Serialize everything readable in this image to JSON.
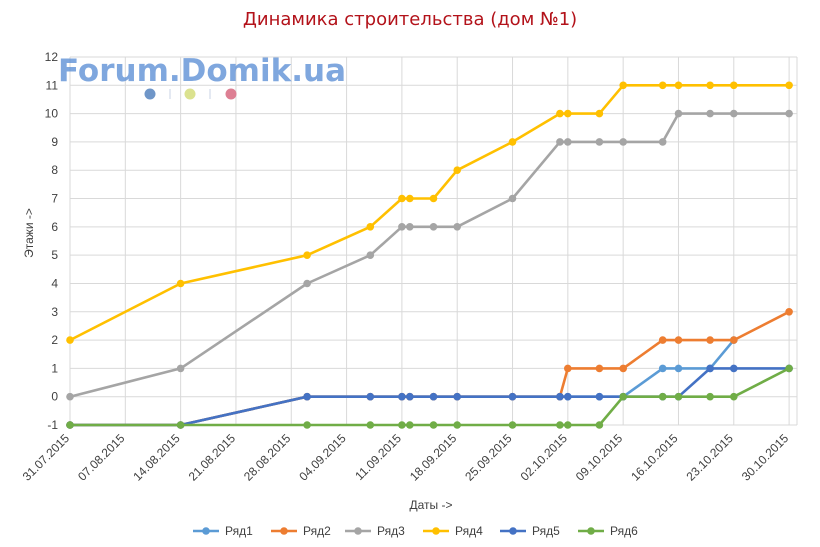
{
  "watermark": {
    "text": "Forum.Domik.ua",
    "dots": [
      "#6f96c8",
      "#dbe28f",
      "#dd7f93"
    ]
  },
  "chart_data": {
    "type": "line",
    "title": "Динамика строительства (дом №1)",
    "xlabel": "Даты ->",
    "ylabel": "Этажи ->",
    "x_tick_labels": [
      "31.07.2015",
      "07.08.2015",
      "14.08.2015",
      "21.08.2015",
      "28.08.2015",
      "04.09.2015",
      "11.09.2015",
      "18.09.2015",
      "25.09.2015",
      "02.10.2015",
      "09.10.2015",
      "16.10.2015",
      "23.10.2015",
      "30.10.2015"
    ],
    "y_ticks": [
      -1,
      0,
      1,
      2,
      3,
      4,
      5,
      6,
      7,
      8,
      9,
      10,
      11,
      12
    ],
    "ylim": [
      -1,
      12
    ],
    "xlim": [
      "31.07.2015",
      "31.10.2015"
    ],
    "grid": true,
    "legend_position": "bottom",
    "x": [
      "31.07.2015",
      "14.08.2015",
      "30.08.2015",
      "07.09.2015",
      "11.09.2015",
      "12.09.2015",
      "15.09.2015",
      "18.09.2015",
      "25.09.2015",
      "01.10.2015",
      "02.10.2015",
      "06.10.2015",
      "09.10.2015",
      "14.10.2015",
      "16.10.2015",
      "20.10.2015",
      "23.10.2015",
      "30.10.2015"
    ],
    "series": [
      {
        "name": "Ряд1",
        "color": "#5b9bd5",
        "values": [
          -1,
          -1,
          0,
          0,
          0,
          0,
          0,
          0,
          0,
          0,
          0,
          0,
          0,
          1,
          1,
          1,
          2,
          null
        ]
      },
      {
        "name": "Ряд2",
        "color": "#ed7d31",
        "values": [
          -1,
          -1,
          0,
          0,
          0,
          0,
          0,
          0,
          0,
          0,
          1,
          1,
          1,
          2,
          2,
          2,
          2,
          3
        ]
      },
      {
        "name": "Ряд3",
        "color": "#a5a5a5",
        "values": [
          0,
          1,
          4,
          5,
          6,
          6,
          6,
          6,
          7,
          9,
          9,
          9,
          9,
          9,
          10,
          10,
          10,
          10
        ]
      },
      {
        "name": "Ряд4",
        "color": "#ffc000",
        "values": [
          2,
          4,
          5,
          6,
          7,
          7,
          7,
          8,
          9,
          10,
          10,
          10,
          11,
          11,
          11,
          11,
          11,
          11
        ]
      },
      {
        "name": "Ряд5",
        "color": "#4472c4",
        "values": [
          -1,
          -1,
          0,
          0,
          0,
          0,
          0,
          0,
          0,
          0,
          0,
          0,
          0,
          0,
          0,
          1,
          1,
          1
        ]
      },
      {
        "name": "Ряд6",
        "color": "#70ad47",
        "values": [
          -1,
          -1,
          -1,
          -1,
          -1,
          -1,
          -1,
          -1,
          -1,
          -1,
          -1,
          -1,
          0,
          0,
          0,
          0,
          0,
          1
        ]
      }
    ]
  }
}
